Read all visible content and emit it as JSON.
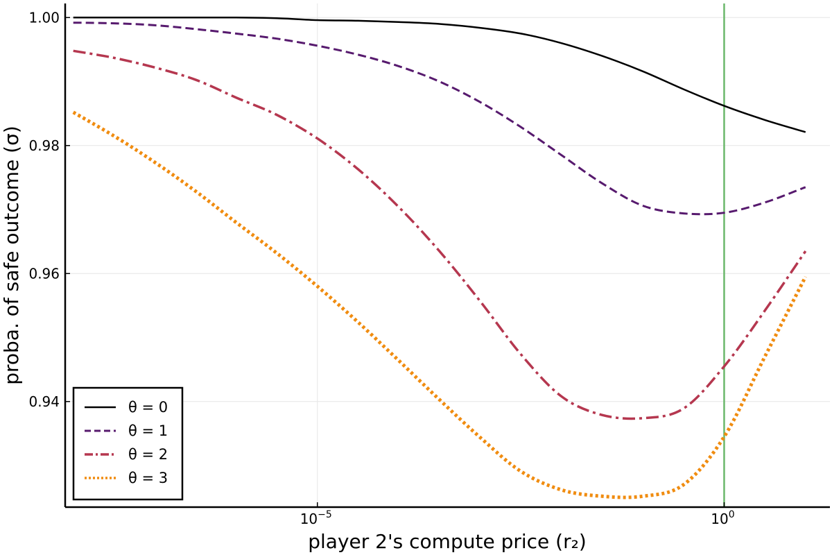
{
  "chart_data": {
    "type": "line",
    "xlabel": "player 2's compute price (r₂)",
    "ylabel": "proba. of safe outcome (σ)",
    "x_scale": "log10",
    "xlim": [
      -8.1,
      1.3
    ],
    "ylim": [
      0.9235,
      1.0022
    ],
    "x_ticks": [
      {
        "value": -5,
        "base": "10",
        "exp": "−5"
      },
      {
        "value": 0,
        "base": "10",
        "exp": "0"
      }
    ],
    "y_ticks": [
      {
        "value": 0.94,
        "label": "0.94"
      },
      {
        "value": 0.96,
        "label": "0.96"
      },
      {
        "value": 0.98,
        "label": "0.98"
      },
      {
        "value": 1.0,
        "label": "1.00"
      }
    ],
    "grid": true,
    "legend_position": "bottom-left",
    "vline": {
      "x": 0,
      "color": "#6bb86b"
    },
    "x": [
      -8.0,
      -7.5,
      -7.0,
      -6.5,
      -6.0,
      -5.5,
      -5.0,
      -4.5,
      -4.0,
      -3.5,
      -3.0,
      -2.5,
      -2.0,
      -1.5,
      -1.0,
      -0.5,
      0.0,
      0.5,
      1.0
    ],
    "series": [
      {
        "name": "θ = 0",
        "color": "#000000",
        "dash": "solid",
        "width": 2.5,
        "values": [
          1.0,
          1.0,
          1.0,
          1.0,
          1.0,
          0.9999,
          0.9996,
          0.9995,
          0.9993,
          0.999,
          0.9984,
          0.9975,
          0.996,
          0.994,
          0.9916,
          0.9888,
          0.9862,
          0.984,
          0.9821
        ]
      },
      {
        "name": "θ = 1",
        "color": "#571a6e",
        "dash": "dashed",
        "width": 3,
        "values": [
          0.9992,
          0.9991,
          0.9988,
          0.9982,
          0.9975,
          0.9967,
          0.9956,
          0.9942,
          0.9924,
          0.99,
          0.9868,
          0.9829,
          0.9785,
          0.9741,
          0.9706,
          0.9694,
          0.9695,
          0.9711,
          0.9735
        ]
      },
      {
        "name": "θ = 2",
        "color": "#b5374f",
        "dash": "dashdot",
        "width": 3.5,
        "values": [
          0.9948,
          0.9937,
          0.9922,
          0.9903,
          0.9875,
          0.9848,
          0.9811,
          0.9763,
          0.9704,
          0.9635,
          0.9557,
          0.9474,
          0.9408,
          0.9379,
          0.9374,
          0.9389,
          0.9455,
          0.9542,
          0.9635
        ]
      },
      {
        "name": "θ = 3",
        "color": "#f08c10",
        "dash": "dotted",
        "width": 5,
        "values": [
          0.9852,
          0.9815,
          0.9774,
          0.9729,
          0.968,
          0.9632,
          0.958,
          0.9524,
          0.9464,
          0.9403,
          0.9344,
          0.9291,
          0.9262,
          0.9252,
          0.9252,
          0.927,
          0.9345,
          0.947,
          0.9595
        ]
      }
    ]
  }
}
